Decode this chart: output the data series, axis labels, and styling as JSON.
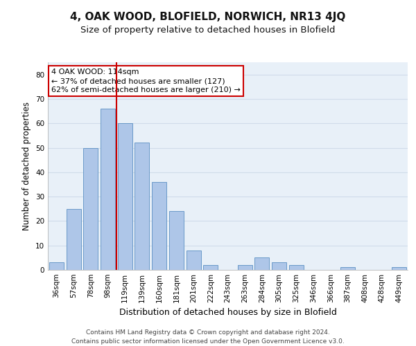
{
  "title": "4, OAK WOOD, BLOFIELD, NORWICH, NR13 4JQ",
  "subtitle": "Size of property relative to detached houses in Blofield",
  "xlabel": "Distribution of detached houses by size in Blofield",
  "ylabel": "Number of detached properties",
  "categories": [
    "36sqm",
    "57sqm",
    "78sqm",
    "98sqm",
    "119sqm",
    "139sqm",
    "160sqm",
    "181sqm",
    "201sqm",
    "222sqm",
    "243sqm",
    "263sqm",
    "284sqm",
    "305sqm",
    "325sqm",
    "346sqm",
    "366sqm",
    "387sqm",
    "408sqm",
    "428sqm",
    "449sqm"
  ],
  "values": [
    3,
    25,
    50,
    66,
    60,
    52,
    36,
    24,
    8,
    2,
    0,
    2,
    5,
    3,
    2,
    0,
    0,
    1,
    0,
    0,
    1
  ],
  "bar_color": "#aec6e8",
  "bar_edge_color": "#5a8fc2",
  "vline_color": "#cc0000",
  "annotation_text": "4 OAK WOOD: 114sqm\n← 37% of detached houses are smaller (127)\n62% of semi-detached houses are larger (210) →",
  "annotation_box_color": "#ffffff",
  "annotation_box_edge": "#cc0000",
  "ylim": [
    0,
    85
  ],
  "yticks": [
    0,
    10,
    20,
    30,
    40,
    50,
    60,
    70,
    80
  ],
  "grid_color": "#d0dcea",
  "bg_color": "#e8f0f8",
  "footer": "Contains HM Land Registry data © Crown copyright and database right 2024.\nContains public sector information licensed under the Open Government Licence v3.0.",
  "title_fontsize": 11,
  "subtitle_fontsize": 9.5,
  "xlabel_fontsize": 9,
  "ylabel_fontsize": 8.5,
  "tick_fontsize": 7.5,
  "annotation_fontsize": 8,
  "footer_fontsize": 6.5
}
